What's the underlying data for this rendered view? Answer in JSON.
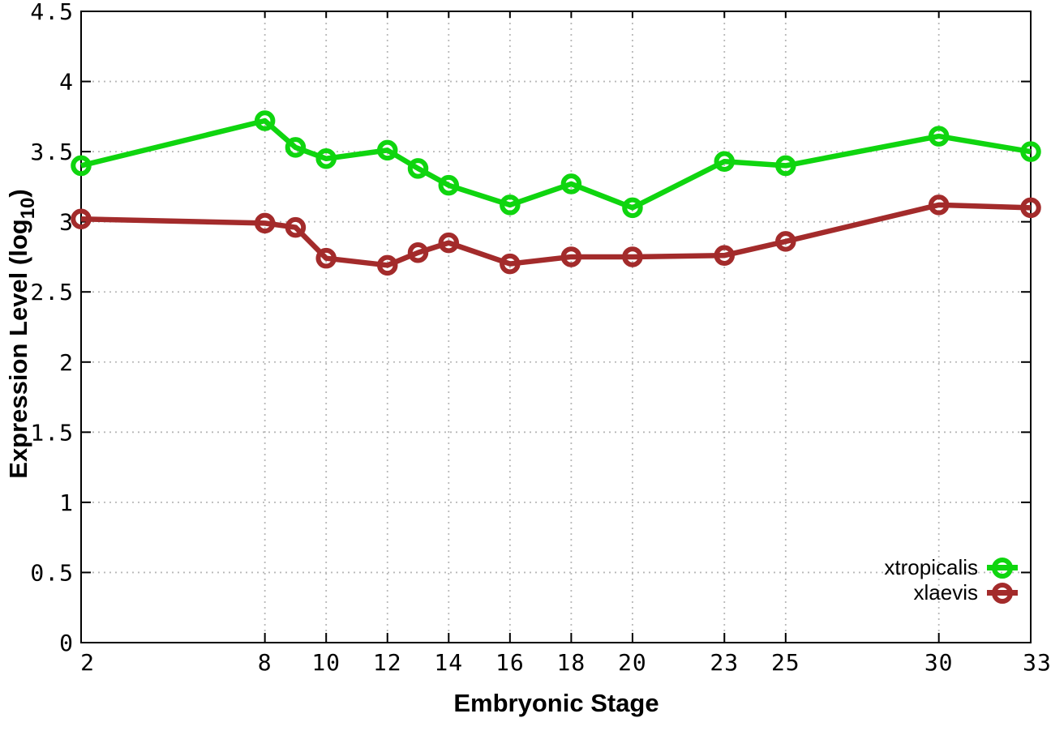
{
  "chart_data": {
    "type": "line",
    "title": "",
    "xlabel": "Embryonic Stage",
    "ylabel": "Expression Level (log10)",
    "ylabel_parts": {
      "main": "Expression Level (log",
      "sub": "10",
      "end": ")"
    },
    "x": [
      2,
      8,
      9,
      10,
      12,
      13,
      14,
      16,
      18,
      20,
      23,
      25,
      30,
      33
    ],
    "series": [
      {
        "name": "xtropicalis",
        "color": "#0fd50f",
        "values": [
          3.4,
          3.72,
          3.53,
          3.45,
          3.51,
          3.38,
          3.26,
          3.12,
          3.27,
          3.1,
          3.43,
          3.4,
          3.61,
          3.5
        ]
      },
      {
        "name": "xlaevis",
        "color": "#a32b2b",
        "values": [
          3.02,
          2.99,
          2.96,
          2.74,
          2.69,
          2.78,
          2.85,
          2.7,
          2.75,
          2.75,
          2.76,
          2.86,
          3.12,
          3.1
        ]
      }
    ],
    "xticks": [
      2,
      8,
      10,
      12,
      14,
      16,
      18,
      20,
      23,
      25,
      30,
      33
    ],
    "xtick_labels": [
      "2",
      "8",
      "10",
      "12",
      "14",
      "16",
      "18",
      "20",
      "23",
      "25",
      "30",
      "33"
    ],
    "yticks": [
      0,
      0.5,
      1,
      1.5,
      2,
      2.5,
      3,
      3.5,
      4,
      4.5
    ],
    "ytick_labels": [
      "0",
      "0.5",
      "1",
      "1.5",
      "2",
      "2.5",
      "3",
      "3.5",
      "4",
      "4.5"
    ],
    "xlim": [
      2,
      33
    ],
    "ylim": [
      0,
      4.5
    ],
    "grid": "dotted",
    "legend_position": "inside-right-lower",
    "marker": "open-circle",
    "background_color": "#ffffff",
    "axis_color": "#000000",
    "grid_color": "#b8b8b8"
  }
}
